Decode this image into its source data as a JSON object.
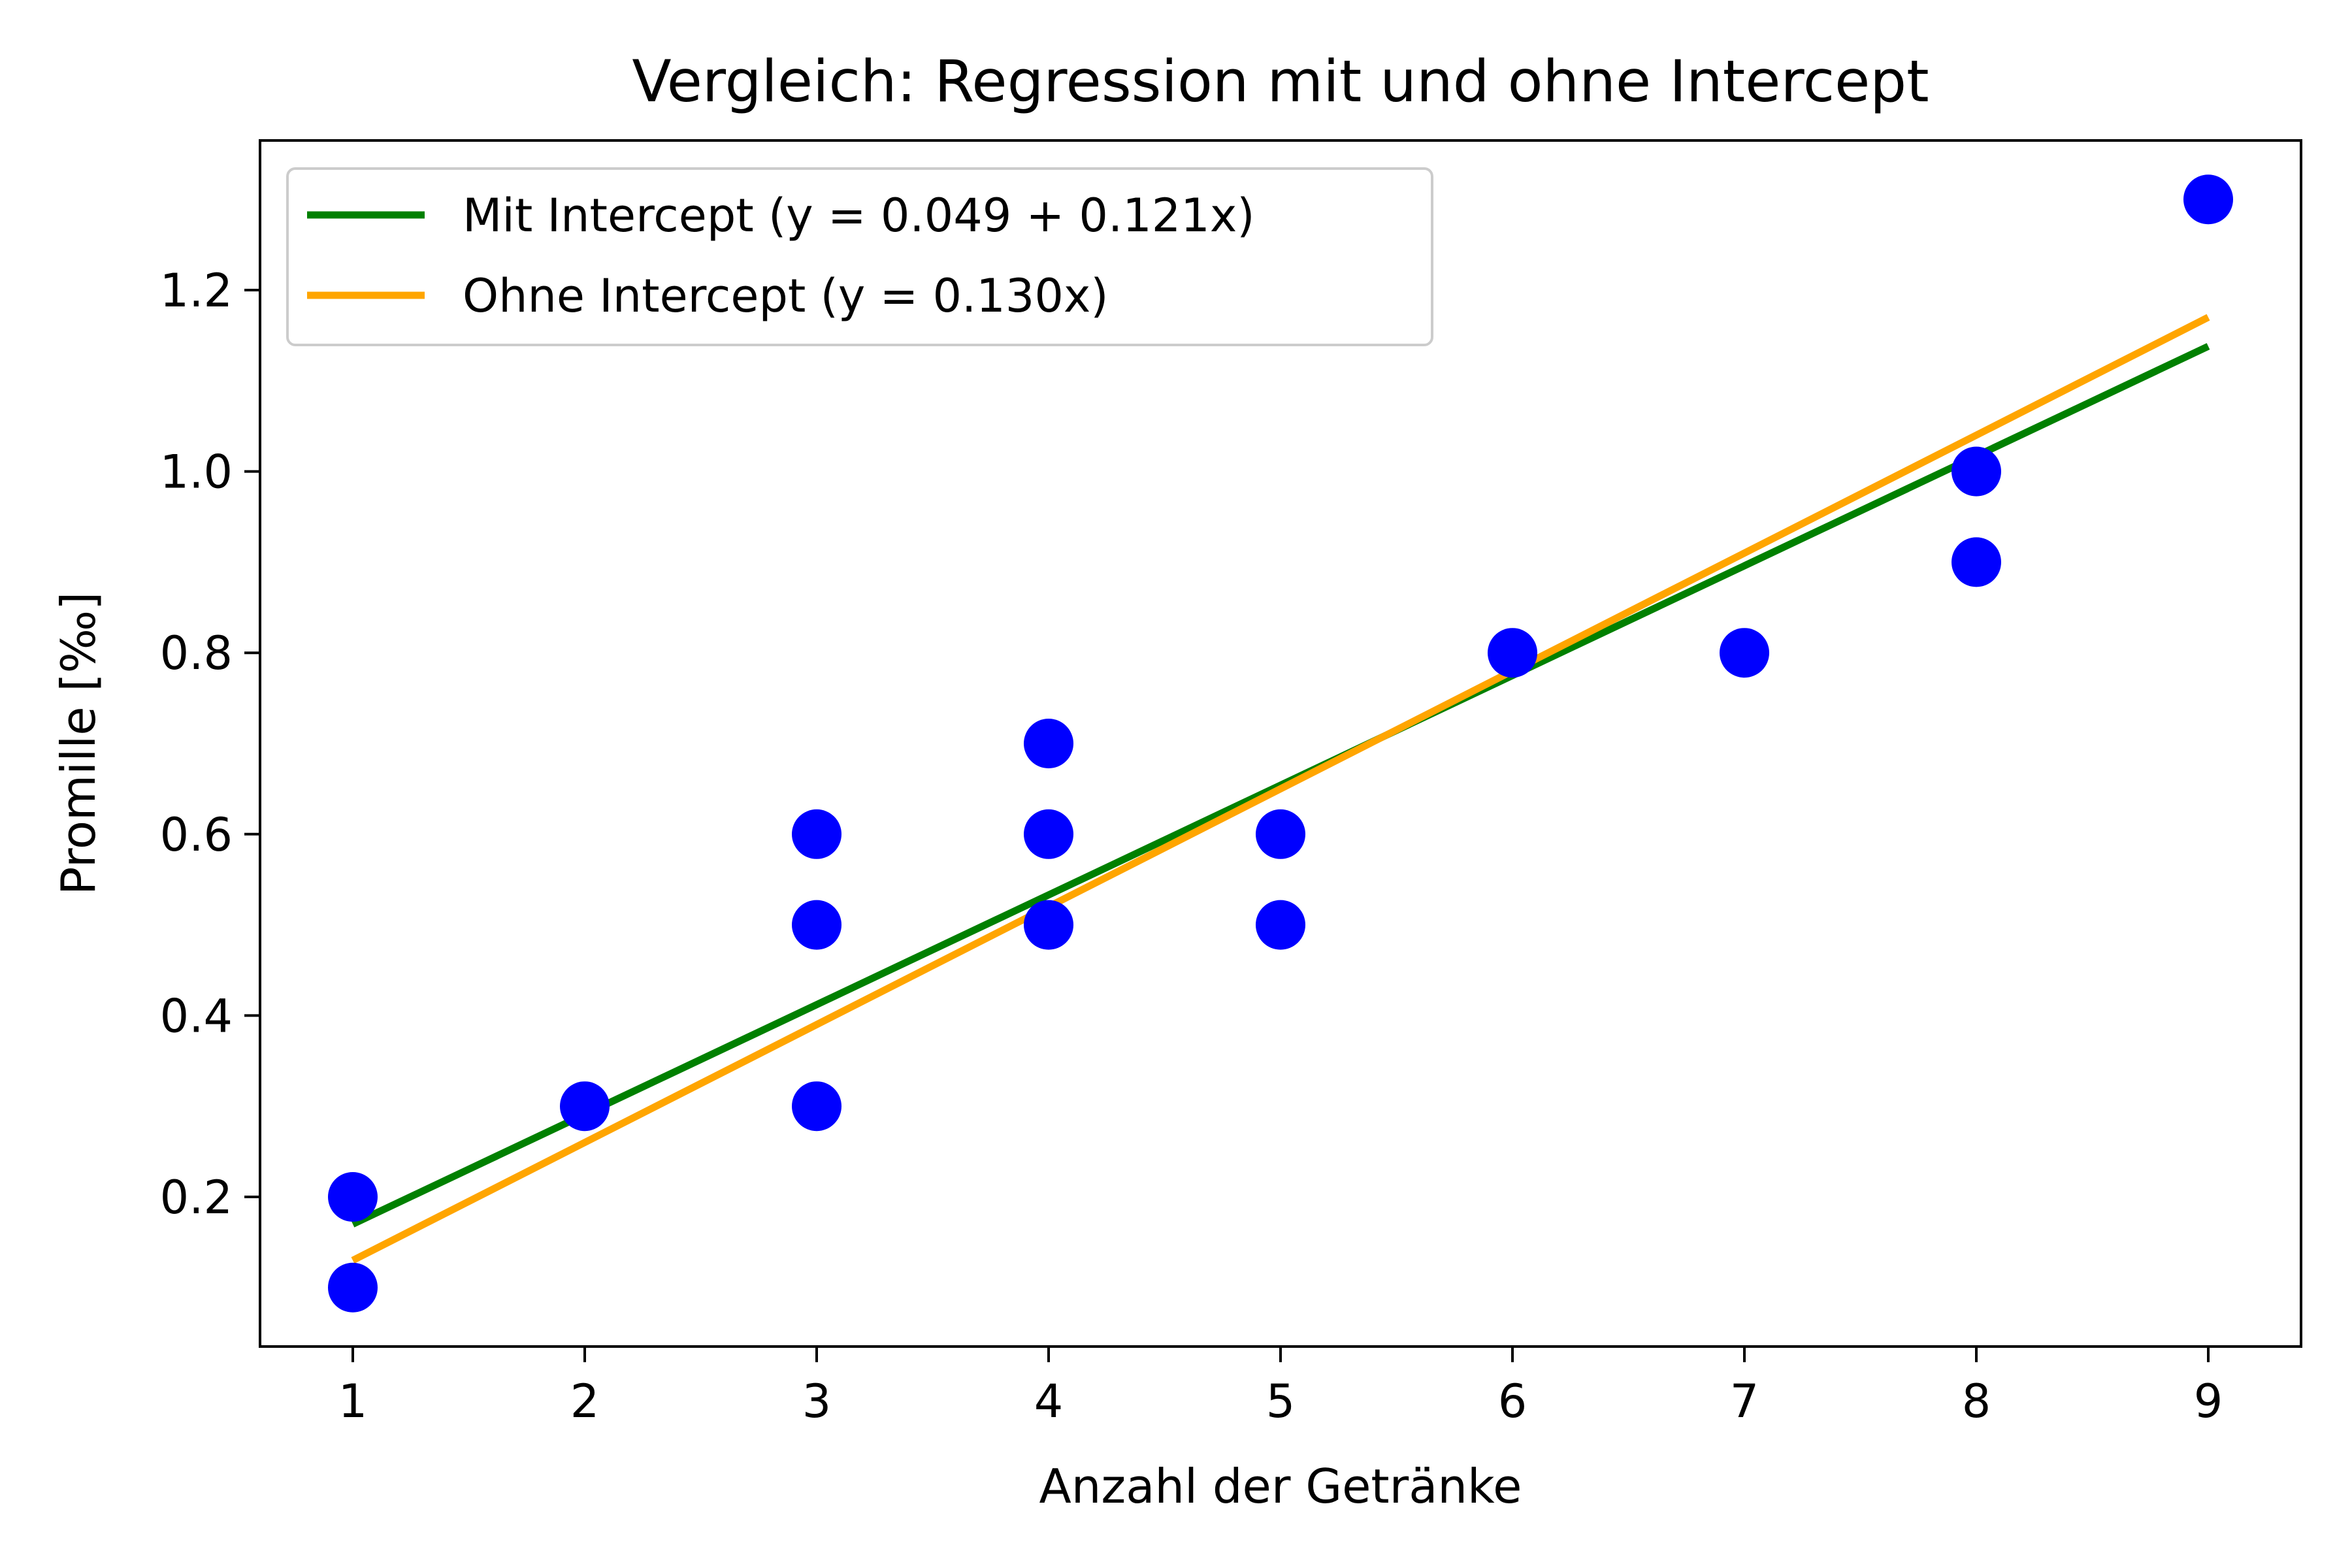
{
  "chart_data": {
    "type": "scatter",
    "title": "Vergleich: Regression mit und ohne Intercept",
    "xlabel": "Anzahl der Getränke",
    "ylabel": "Promille [‰]",
    "xlim": [
      0.6,
      9.4
    ],
    "ylim": [
      0.035,
      1.365
    ],
    "x_ticks": [
      1,
      2,
      3,
      4,
      5,
      6,
      7,
      8,
      9
    ],
    "y_ticks": [
      0.2,
      0.4,
      0.6,
      0.8,
      1.0,
      1.2
    ],
    "y_tick_labels": [
      "0.2",
      "0.4",
      "0.6",
      "0.8",
      "1.0",
      "1.2"
    ],
    "grid": false,
    "legend_position": "top-left",
    "points": {
      "color": "#0000ff",
      "x": [
        1,
        1,
        2,
        3,
        3,
        3,
        4,
        4,
        4,
        5,
        5,
        6,
        7,
        8,
        8,
        9
      ],
      "y": [
        0.2,
        0.1,
        0.3,
        0.6,
        0.5,
        0.3,
        0.7,
        0.6,
        0.5,
        0.6,
        0.5,
        0.8,
        0.8,
        1.0,
        0.9,
        1.3
      ]
    },
    "lines": [
      {
        "name": "Mit Intercept (y = 0.049 + 0.121x)",
        "color": "#008000",
        "intercept": 0.049,
        "slope": 0.121,
        "x_range": [
          1,
          9
        ]
      },
      {
        "name": "Ohne Intercept (y = 0.130x)",
        "color": "#ffa500",
        "intercept": 0.0,
        "slope": 0.13,
        "x_range": [
          1,
          9
        ]
      }
    ]
  }
}
